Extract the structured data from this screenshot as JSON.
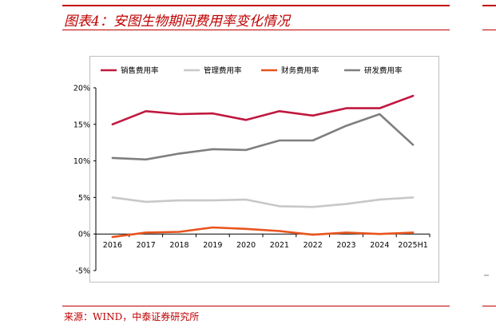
{
  "figure": {
    "title": "图表4：安图生物期间费用率变化情况",
    "source": "来源：WIND，中泰证券研究所"
  },
  "chart_data": {
    "type": "line",
    "categories": [
      "2016",
      "2017",
      "2018",
      "2019",
      "2020",
      "2021",
      "2022",
      "2023",
      "2024",
      "2025H1"
    ],
    "y_tick_labels": [
      "20%",
      "15%",
      "10%",
      "5%",
      "0%",
      "-5%"
    ],
    "y_ticks": [
      20,
      15,
      10,
      5,
      0,
      -5
    ],
    "ylim": [
      -5,
      20
    ],
    "grid": false,
    "legend_position": "top",
    "series": [
      {
        "name": "销售费用率",
        "color": "#c0183f",
        "values": [
          15.0,
          16.8,
          16.4,
          16.5,
          15.6,
          16.8,
          16.2,
          17.2,
          17.2,
          18.9
        ]
      },
      {
        "name": "管理费用率",
        "color": "#c8c8c8",
        "values": [
          5.0,
          4.4,
          4.6,
          4.6,
          4.7,
          3.8,
          3.7,
          4.1,
          4.7,
          5.0
        ]
      },
      {
        "name": "财务费用率",
        "color": "#e8541e",
        "values": [
          -0.4,
          0.2,
          0.3,
          0.9,
          0.7,
          0.4,
          -0.1,
          0.2,
          0.0,
          0.2
        ]
      },
      {
        "name": "研发费用率",
        "color": "#7f7f7f",
        "values": [
          10.4,
          10.2,
          11.0,
          11.6,
          11.5,
          12.8,
          12.8,
          14.8,
          16.4,
          12.2
        ]
      }
    ]
  }
}
